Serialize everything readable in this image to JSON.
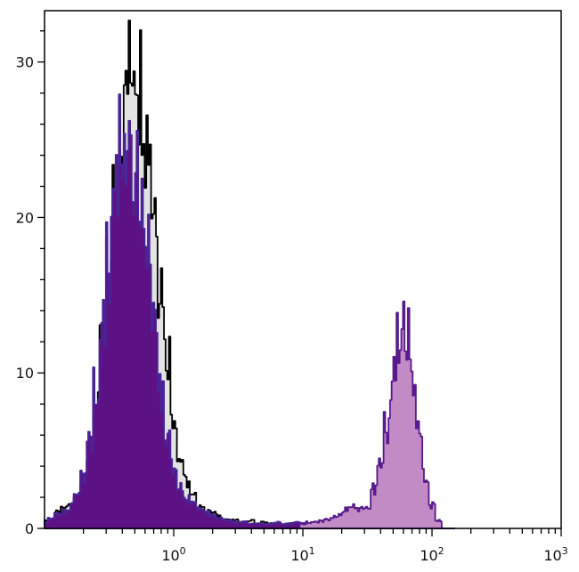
{
  "chart_data": {
    "type": "area",
    "title": "",
    "xlabel": "",
    "ylabel": "",
    "x_scale": "log",
    "xlim": [
      0.1,
      1000
    ],
    "ylim": [
      0,
      33.3
    ],
    "grid": false,
    "legend": "none",
    "x_ticks": [
      {
        "base": "10",
        "exp": "0",
        "value": 1
      },
      {
        "base": "10",
        "exp": "1",
        "value": 10
      },
      {
        "base": "10",
        "exp": "2",
        "value": 100
      },
      {
        "base": "10",
        "exp": "3",
        "value": 1000
      }
    ],
    "y_ticks": [
      {
        "label": "0",
        "value": 0
      },
      {
        "label": "10",
        "value": 10
      },
      {
        "label": "20",
        "value": 20
      },
      {
        "label": "30",
        "value": 30
      }
    ],
    "x": [
      0.1,
      0.112,
      0.126,
      0.141,
      0.158,
      0.178,
      0.2,
      0.224,
      0.251,
      0.282,
      0.316,
      0.355,
      0.398,
      0.447,
      0.501,
      0.562,
      0.631,
      0.708,
      0.794,
      0.891,
      1,
      1.12,
      1.26,
      1.41,
      1.58,
      1.78,
      2,
      2.24,
      2.51,
      2.82,
      3.16,
      3.55,
      3.98,
      4.47,
      5.01,
      5.62,
      6.31,
      7.08,
      7.94,
      8.91,
      10,
      11.2,
      12.6,
      14.1,
      15.8,
      17.8,
      20,
      22.4,
      25.1,
      28.2,
      31.6,
      35.5,
      39.8,
      44.7,
      50.1,
      56.2,
      63.1,
      70.8,
      79.4,
      89.1,
      100,
      112,
      126,
      141
    ],
    "series": [
      {
        "fill": "#e3e3e3",
        "stroke": "#000000",
        "values": [
          0.5,
          0.6,
          1,
          1.2,
          1.5,
          2,
          3,
          4.5,
          7.5,
          11.4,
          16.2,
          21.2,
          25.7,
          28.9,
          31.5,
          28.9,
          25.7,
          21.2,
          16.2,
          11.4,
          7.5,
          4.5,
          3,
          2,
          1.5,
          1.2,
          1,
          0.8,
          0.6,
          0.5,
          0.5,
          0.4,
          0.5,
          0.3,
          0.4,
          0.3,
          0.3,
          0.2,
          0.3,
          0.2,
          0.2,
          0,
          0,
          0,
          0,
          0,
          0,
          0,
          0,
          0,
          0,
          0,
          0,
          0,
          0,
          0,
          0,
          0,
          0,
          0,
          0,
          0,
          0,
          0
        ]
      },
      {
        "fill": "#5c1284",
        "stroke": "#4a2496",
        "values": [
          0.4,
          0.6,
          0.9,
          1.1,
          1.4,
          2,
          3.2,
          5.5,
          9,
          13,
          17.5,
          21,
          24,
          25,
          24,
          21,
          17.5,
          13,
          9,
          6,
          4,
          2.8,
          2,
          1.5,
          1.2,
          1,
          0.8,
          0.6,
          0.5,
          0.5,
          0.4,
          0.4,
          0.3,
          0.3,
          0.3,
          0.3,
          0.4,
          0.3,
          0.3,
          0.4,
          0.4,
          0.3,
          0.3,
          0.4,
          0,
          0,
          0,
          0,
          0,
          0,
          0,
          0,
          0,
          0,
          0,
          0,
          0,
          0,
          0,
          0,
          0,
          0,
          0,
          0
        ]
      },
      {
        "fill": "#c28bc6",
        "stroke": "#561a8c",
        "values": [
          0,
          0,
          0,
          0,
          0,
          0,
          0,
          0,
          0,
          0,
          0,
          0,
          0,
          0,
          0,
          0,
          0,
          0,
          0,
          0,
          0,
          0,
          0,
          0,
          0,
          0,
          0,
          0,
          0,
          0,
          0,
          0,
          0,
          0,
          0,
          0,
          0,
          0,
          0,
          0,
          0.3,
          0.4,
          0.4,
          0.5,
          0.6,
          0.8,
          1,
          1.2,
          1.5,
          1.2,
          1.5,
          2.5,
          4,
          6.5,
          9.5,
          12,
          12.5,
          10,
          6.5,
          3.5,
          1.5,
          0.5,
          0,
          0
        ]
      }
    ]
  }
}
